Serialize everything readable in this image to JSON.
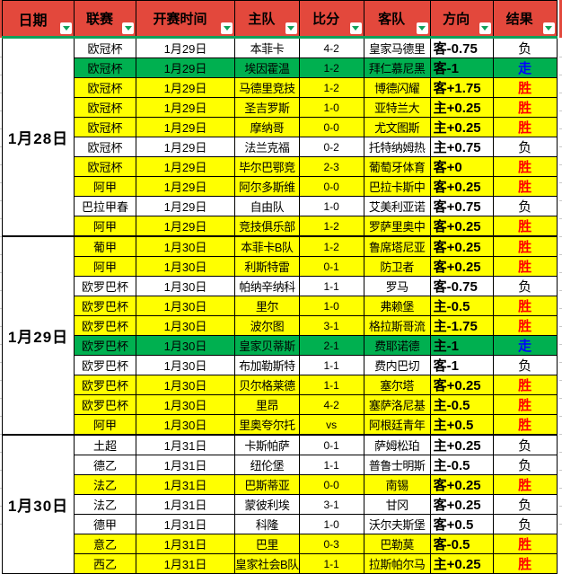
{
  "colors": {
    "header_bg": "#e3483c",
    "win_bg": "#ffff00",
    "push_bg": "#00b050",
    "loss_bg": "#ffffff",
    "win_text": "#ff0000",
    "push_text": "#0000ff",
    "accent_green": "#0fa05a"
  },
  "table": {
    "headers": [
      {
        "label": "日期"
      },
      {
        "label": "联赛"
      },
      {
        "label": "开赛时间"
      },
      {
        "label": "主队"
      },
      {
        "label": "比分"
      },
      {
        "label": "客队"
      },
      {
        "label": "方向"
      },
      {
        "label": "结果"
      }
    ],
    "sections": [
      {
        "date": "1月28日",
        "rows": [
          {
            "league": "欧冠杯",
            "time": "1月29日",
            "home": "本菲卡",
            "score": "4-2",
            "away": "皇家马德里",
            "direction": "客-0.75",
            "result": "负",
            "status": "loss"
          },
          {
            "league": "欧冠杯",
            "time": "1月29日",
            "home": "埃因霍温",
            "score": "1-2",
            "away": "拜仁慕尼黑",
            "direction": "客-1",
            "result": "走",
            "status": "push"
          },
          {
            "league": "欧冠杯",
            "time": "1月29日",
            "home": "马德里竞技",
            "score": "1-2",
            "away": "博德闪耀",
            "direction": "客+1.75",
            "result": "胜",
            "status": "win"
          },
          {
            "league": "欧冠杯",
            "time": "1月29日",
            "home": "圣吉罗斯",
            "score": "1-0",
            "away": "亚特兰大",
            "direction": "主+0.25",
            "result": "胜",
            "status": "win"
          },
          {
            "league": "欧冠杯",
            "time": "1月29日",
            "home": "摩纳哥",
            "score": "0-0",
            "away": "尤文图斯",
            "direction": "主+0.25",
            "result": "胜",
            "status": "win"
          },
          {
            "league": "欧冠杯",
            "time": "1月29日",
            "home": "法兰克福",
            "score": "0-2",
            "away": "托特纳姆热",
            "direction": "主+0.75",
            "result": "负",
            "status": "loss"
          },
          {
            "league": "欧冠杯",
            "time": "1月29日",
            "home": "毕尔巴鄂竞",
            "score": "2-3",
            "away": "葡萄牙体育",
            "direction": "客+0",
            "result": "胜",
            "status": "win"
          },
          {
            "league": "阿甲",
            "time": "1月29日",
            "home": "阿尔多斯维",
            "score": "0-0",
            "away": "巴拉卡斯中",
            "direction": "客+0.25",
            "result": "胜",
            "status": "win"
          },
          {
            "league": "巴拉甲春",
            "time": "1月29日",
            "home": "自由队",
            "score": "1-0",
            "away": "艾美利亚诺",
            "direction": "客+0.75",
            "result": "负",
            "status": "loss"
          },
          {
            "league": "阿甲",
            "time": "1月29日",
            "home": "竞技俱乐部",
            "score": "1-2",
            "away": "罗萨里奥中",
            "direction": "客+0.25",
            "result": "胜",
            "status": "win"
          }
        ]
      },
      {
        "date": "1月29日",
        "rows": [
          {
            "league": "葡甲",
            "time": "1月30日",
            "home": "本菲卡B队",
            "score": "1-2",
            "away": "鲁席塔尼亚",
            "direction": "客+0.25",
            "result": "胜",
            "status": "win"
          },
          {
            "league": "阿甲",
            "time": "1月30日",
            "home": "利斯特雷",
            "score": "0-1",
            "away": "防卫者",
            "direction": "客+0.25",
            "result": "胜",
            "status": "win"
          },
          {
            "league": "欧罗巴杯",
            "time": "1月30日",
            "home": "帕纳辛纳科",
            "score": "1-1",
            "away": "罗马",
            "direction": "客-0.75",
            "result": "负",
            "status": "loss"
          },
          {
            "league": "欧罗巴杯",
            "time": "1月30日",
            "home": "里尔",
            "score": "1-0",
            "away": "弗赖堡",
            "direction": "主-0.5",
            "result": "胜",
            "status": "win"
          },
          {
            "league": "欧罗巴杯",
            "time": "1月30日",
            "home": "波尔图",
            "score": "3-1",
            "away": "格拉斯哥流",
            "direction": "主-1.75",
            "result": "胜",
            "status": "win"
          },
          {
            "league": "欧罗巴杯",
            "time": "1月30日",
            "home": "皇家贝蒂斯",
            "score": "2-1",
            "away": "费耶诺德",
            "direction": "主-1",
            "result": "走",
            "status": "push"
          },
          {
            "league": "欧罗巴杯",
            "time": "1月30日",
            "home": "布加勒斯特",
            "score": "1-1",
            "away": "费内巴切",
            "direction": "客-1",
            "result": "负",
            "status": "loss"
          },
          {
            "league": "欧罗巴杯",
            "time": "1月30日",
            "home": "贝尔格莱德",
            "score": "1-1",
            "away": "塞尔塔",
            "direction": "客+0.25",
            "result": "胜",
            "status": "win"
          },
          {
            "league": "欧罗巴杯",
            "time": "1月30日",
            "home": "里昂",
            "score": "4-2",
            "away": "塞萨洛尼基",
            "direction": "主-0.5",
            "result": "胜",
            "status": "win"
          },
          {
            "league": "阿甲",
            "time": "1月30日",
            "home": "里奥夸尔托",
            "score": "vs",
            "away": "阿根廷青年",
            "direction": "主+0.5",
            "result": "胜",
            "status": "win"
          }
        ]
      },
      {
        "date": "1月30日",
        "rows": [
          {
            "league": "土超",
            "time": "1月31日",
            "home": "卡斯帕萨",
            "score": "0-1",
            "away": "萨姆松珀",
            "direction": "主+0.25",
            "result": "负",
            "status": "loss"
          },
          {
            "league": "德乙",
            "time": "1月31日",
            "home": "纽伦堡",
            "score": "1-1",
            "away": "普鲁士明斯",
            "direction": "主-0.5",
            "result": "负",
            "status": "loss"
          },
          {
            "league": "法乙",
            "time": "1月31日",
            "home": "巴斯蒂亚",
            "score": "0-0",
            "away": "南锡",
            "direction": "客+0.25",
            "result": "胜",
            "status": "win"
          },
          {
            "league": "法乙",
            "time": "1月31日",
            "home": "蒙彼利埃",
            "score": "3-1",
            "away": "甘冈",
            "direction": "客+0.25",
            "result": "负",
            "status": "loss"
          },
          {
            "league": "德甲",
            "time": "1月31日",
            "home": "科隆",
            "score": "1-0",
            "away": "沃尔夫斯堡",
            "direction": "客+0.5",
            "result": "负",
            "status": "loss"
          },
          {
            "league": "意乙",
            "time": "1月31日",
            "home": "巴里",
            "score": "0-3",
            "away": "巴勒莫",
            "direction": "客-0.5",
            "result": "胜",
            "status": "win"
          },
          {
            "league": "西乙",
            "time": "1月31日",
            "home": "皇家社会B队",
            "score": "1-1",
            "away": "拉斯帕尔马",
            "direction": "主+0.25",
            "result": "胜",
            "status": "win"
          }
        ]
      }
    ]
  }
}
